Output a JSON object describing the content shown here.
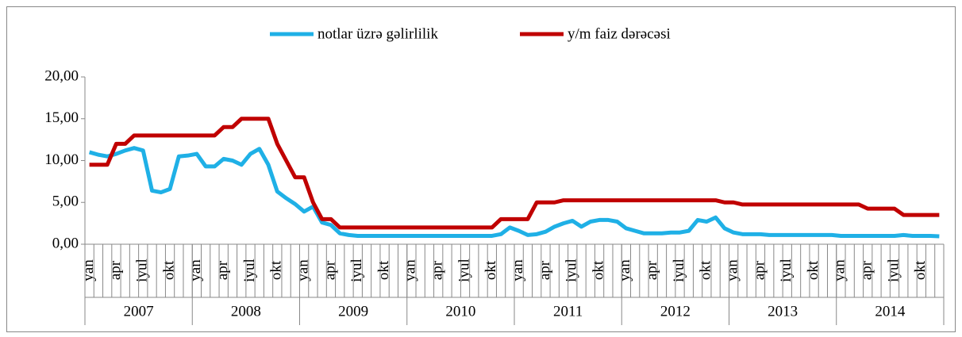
{
  "chart_data": {
    "type": "line",
    "categories": [
      "yan",
      null,
      null,
      "apr",
      null,
      null,
      "iyul",
      null,
      null,
      "okt",
      null,
      null,
      "yan",
      null,
      null,
      "apr",
      null,
      null,
      "iyul",
      null,
      null,
      "okt",
      null,
      null,
      "yan",
      null,
      null,
      "apr",
      null,
      null,
      "iyul",
      null,
      null,
      "okt",
      null,
      null,
      "yan",
      null,
      null,
      "apr",
      null,
      null,
      "iyul",
      null,
      null,
      "okt",
      null,
      null,
      "yan",
      null,
      null,
      "apr",
      null,
      null,
      "iyul",
      null,
      null,
      "okt",
      null,
      null,
      "yan",
      null,
      null,
      "apr",
      null,
      null,
      "iyul",
      null,
      null,
      "okt",
      null,
      null,
      "yan",
      null,
      null,
      "apr",
      null,
      null,
      "iyul",
      null,
      null,
      "okt",
      null,
      null,
      "yan",
      null,
      null,
      "apr",
      null,
      null,
      "iyul",
      null,
      null,
      "okt",
      null,
      null
    ],
    "groups": [
      "2007",
      "2008",
      "2009",
      "2010",
      "2011",
      "2012",
      "2013",
      "2014"
    ],
    "series": [
      {
        "name": "notlar üzrə gəlirlilik",
        "color": "#1fb0e6",
        "values": [
          11,
          10.7,
          10.5,
          10.8,
          11.2,
          11.5,
          11.2,
          6.4,
          6.2,
          6.6,
          10.5,
          10.6,
          10.8,
          9.3,
          9.3,
          10.2,
          10,
          9.5,
          10.8,
          11.4,
          9.5,
          6.3,
          5.5,
          4.8,
          3.9,
          4.5,
          2.6,
          2.3,
          1.3,
          1.1,
          1,
          1,
          1,
          1,
          1,
          1,
          1,
          1,
          1,
          1,
          1,
          1,
          1,
          1,
          1,
          1,
          1.2,
          2,
          1.6,
          1.1,
          1.2,
          1.5,
          2.1,
          2.5,
          2.8,
          2.1,
          2.7,
          2.9,
          2.9,
          2.7,
          1.9,
          1.6,
          1.3,
          1.3,
          1.3,
          1.4,
          1.4,
          1.6,
          2.9,
          2.7,
          3.2,
          1.9,
          1.4,
          1.2,
          1.2,
          1.2,
          1.1,
          1.1,
          1.1,
          1.1,
          1.1,
          1.1,
          1.1,
          1.1,
          1,
          1,
          1,
          1,
          1,
          1,
          1,
          1.1,
          1,
          1,
          1,
          0.95
        ]
      },
      {
        "name": "y/m faiz dərəcəsi",
        "color": "#c00000",
        "values": [
          9.5,
          9.5,
          9.5,
          12,
          12,
          13,
          13,
          13,
          13,
          13,
          13,
          13,
          13,
          13,
          13,
          14,
          14,
          15,
          15,
          15,
          15,
          12,
          10,
          8,
          8,
          5,
          3,
          3,
          2,
          2,
          2,
          2,
          2,
          2,
          2,
          2,
          2,
          2,
          2,
          2,
          2,
          2,
          2,
          2,
          2,
          2,
          3,
          3,
          3,
          3,
          5,
          5,
          5,
          5.25,
          5.25,
          5.25,
          5.25,
          5.25,
          5.25,
          5.25,
          5.25,
          5.25,
          5.25,
          5.25,
          5.25,
          5.25,
          5.25,
          5.25,
          5.25,
          5.25,
          5.25,
          5,
          5,
          4.75,
          4.75,
          4.75,
          4.75,
          4.75,
          4.75,
          4.75,
          4.75,
          4.75,
          4.75,
          4.75,
          4.75,
          4.75,
          4.75,
          4.25,
          4.25,
          4.25,
          4.25,
          3.5,
          3.5,
          3.5,
          3.5,
          3.5
        ]
      }
    ],
    "ylim": [
      0,
      20
    ],
    "yticks": [
      {
        "value": 0,
        "label": "0,00"
      },
      {
        "value": 5,
        "label": "5,00"
      },
      {
        "value": 10,
        "label": "10,00"
      },
      {
        "value": 15,
        "label": "15,00"
      },
      {
        "value": 20,
        "label": "20,00"
      }
    ],
    "grid": false,
    "legend": "top"
  }
}
